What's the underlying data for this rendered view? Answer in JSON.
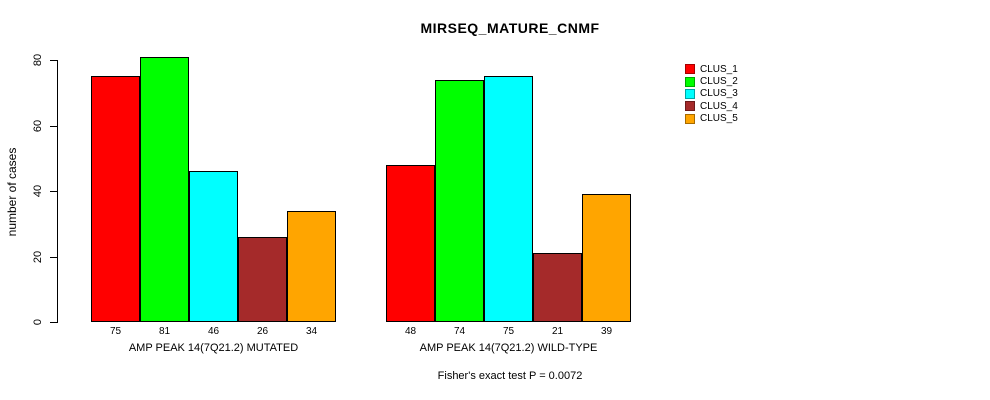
{
  "chart_data": {
    "type": "bar",
    "title": "MIRSEQ_MATURE_CNMF",
    "xlabel": "",
    "ylabel": "number of cases",
    "ylim": [
      0,
      80
    ],
    "yticks": [
      0,
      20,
      40,
      60,
      80
    ],
    "grid": false,
    "legend_position": "right",
    "series": [
      {
        "name": "CLUS_1",
        "color": "#FF0000"
      },
      {
        "name": "CLUS_2",
        "color": "#00FF00"
      },
      {
        "name": "CLUS_3",
        "color": "#00FFFF"
      },
      {
        "name": "CLUS_4",
        "color": "#A52A2A"
      },
      {
        "name": "CLUS_5",
        "color": "#FFA500"
      }
    ],
    "groups": [
      {
        "label": "AMP PEAK 14(7Q21.2) MUTATED",
        "values": [
          75,
          81,
          46,
          26,
          34
        ]
      },
      {
        "label": "AMP PEAK 14(7Q21.2) WILD-TYPE",
        "values": [
          48,
          74,
          75,
          21,
          39
        ]
      }
    ],
    "bar_value_labels_shown": true,
    "annotation": "Fisher's exact test P = 0.0072"
  }
}
